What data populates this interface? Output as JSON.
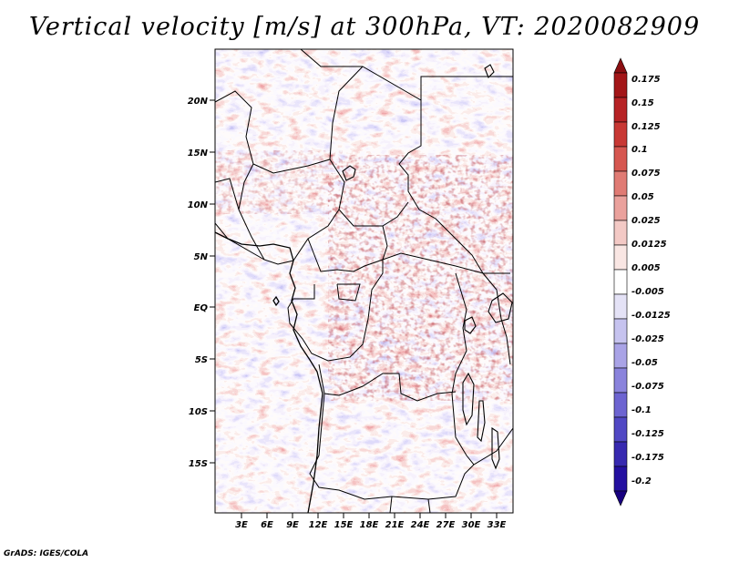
{
  "title": "Vertical velocity [m/s] at 300hPa, VT: 2020082909",
  "credit": "GrADS: IGES/COLA",
  "map": {
    "lat_labels": [
      "20N",
      "15N",
      "10N",
      "5N",
      "EQ",
      "5S",
      "10S",
      "15S"
    ],
    "lon_labels": [
      "3E",
      "6E",
      "9E",
      "12E",
      "15E",
      "18E",
      "21E",
      "24E",
      "27E",
      "30E",
      "33E"
    ]
  },
  "colorbar": {
    "labels": [
      "0.175",
      "0.15",
      "0.125",
      "0.1",
      "0.075",
      "0.05",
      "0.025",
      "0.0125",
      "0.005",
      "-0.005",
      "-0.0125",
      "-0.025",
      "-0.05",
      "-0.075",
      "-0.1",
      "-0.125",
      "-0.175",
      "-0.2"
    ],
    "colors": [
      "#8b0f12",
      "#a31618",
      "#b72325",
      "#c83834",
      "#d65750",
      "#e07b74",
      "#eaa19c",
      "#f3c9c5",
      "#f9e6e3",
      "#ffffff",
      "#e4e2f6",
      "#c6c3ef",
      "#a9a3e6",
      "#8a83dc",
      "#6d64d1",
      "#5148c4",
      "#3729b0",
      "#2410a0",
      "#180080"
    ]
  }
}
